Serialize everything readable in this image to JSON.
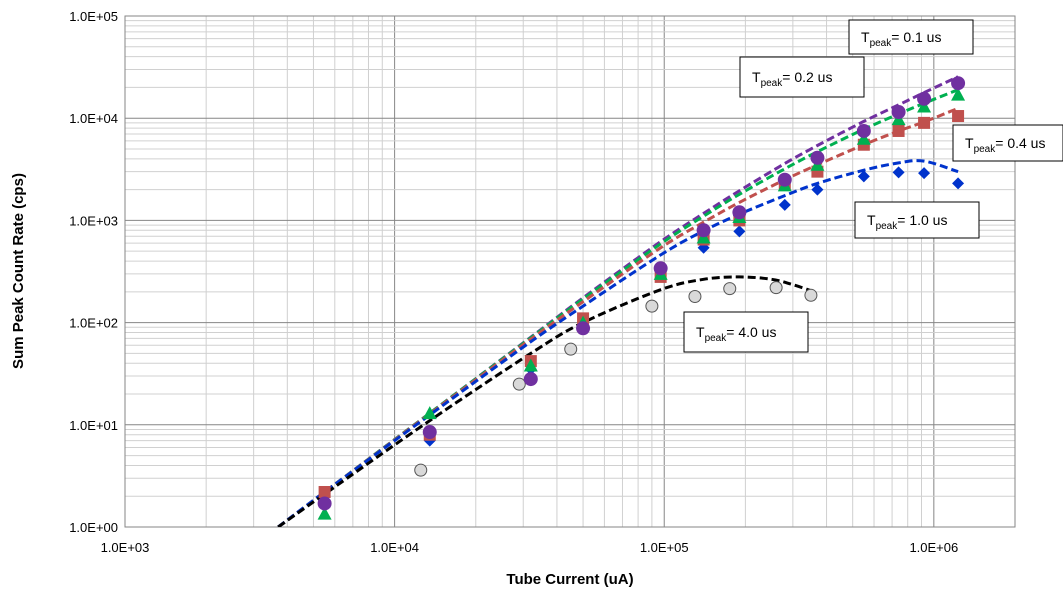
{
  "chart_data": {
    "type": "scatter",
    "xlabel": "Tube Current (uA)",
    "ylabel": "Sum Peak Count Rate (cps)",
    "xscale": "log",
    "yscale": "log",
    "xlim": [
      1000,
      2000000
    ],
    "ylim": [
      1,
      100000
    ],
    "xticks": [
      "1.0E+03",
      "1.0E+04",
      "1.0E+05",
      "1.0E+06"
    ],
    "yticks": [
      "1.0E+00",
      "1.0E+01",
      "1.0E+02",
      "1.0E+03",
      "1.0E+04",
      "1.0E+05"
    ],
    "grid": true,
    "series": [
      {
        "tpeak_us": 0.1,
        "label": {
          "t": "T",
          "sub": "peak",
          "rest": "= 0.1 us"
        },
        "color": "#7030a0",
        "marker": "circle",
        "points": [
          [
            5500,
            1.7
          ],
          [
            13500,
            8.5
          ],
          [
            32000,
            28
          ],
          [
            50000,
            88
          ],
          [
            97000,
            340
          ],
          [
            140000,
            800
          ],
          [
            190000,
            1200
          ],
          [
            280000,
            2500
          ],
          [
            370000,
            4100
          ],
          [
            550000,
            7500
          ],
          [
            740000,
            11500
          ],
          [
            920000,
            15500
          ],
          [
            1230000,
            22000
          ]
        ],
        "fit": [
          [
            3700,
            1
          ],
          [
            5500,
            2.2
          ],
          [
            13500,
            13
          ],
          [
            32000,
            72
          ],
          [
            50000,
            175
          ],
          [
            97000,
            620
          ],
          [
            140000,
            1170
          ],
          [
            190000,
            1950
          ],
          [
            280000,
            3600
          ],
          [
            370000,
            5400
          ],
          [
            550000,
            9300
          ],
          [
            740000,
            13500
          ],
          [
            920000,
            17800
          ],
          [
            1230000,
            25500
          ]
        ]
      },
      {
        "tpeak_us": 0.2,
        "label": {
          "t": "T",
          "sub": "peak",
          "rest": "= 0.2 us"
        },
        "color": "#00b050",
        "marker": "triangle",
        "points": [
          [
            5500,
            1.35
          ],
          [
            13500,
            13
          ],
          [
            32000,
            38
          ],
          [
            50000,
            100
          ],
          [
            97000,
            300
          ],
          [
            140000,
            680
          ],
          [
            190000,
            1080
          ],
          [
            280000,
            2200
          ],
          [
            370000,
            3500
          ],
          [
            550000,
            6300
          ],
          [
            740000,
            9800
          ],
          [
            920000,
            13000
          ],
          [
            1230000,
            17000
          ]
        ],
        "fit": [
          [
            3700,
            1
          ],
          [
            5500,
            2.2
          ],
          [
            13500,
            13
          ],
          [
            32000,
            71
          ],
          [
            50000,
            170
          ],
          [
            97000,
            590
          ],
          [
            140000,
            1100
          ],
          [
            190000,
            1800
          ],
          [
            280000,
            3200
          ],
          [
            370000,
            4700
          ],
          [
            550000,
            7800
          ],
          [
            740000,
            11000
          ],
          [
            920000,
            14000
          ],
          [
            1230000,
            19000
          ]
        ]
      },
      {
        "tpeak_us": 0.4,
        "label": {
          "t": "T",
          "sub": "peak",
          "rest": "= 0.4 us"
        },
        "color": "#c0504d",
        "marker": "square",
        "points": [
          [
            5500,
            2.2
          ],
          [
            13500,
            8
          ],
          [
            32000,
            42
          ],
          [
            50000,
            110
          ],
          [
            97000,
            280
          ],
          [
            140000,
            650
          ],
          [
            190000,
            1000
          ],
          [
            280000,
            2300
          ],
          [
            370000,
            3000
          ],
          [
            550000,
            5500
          ],
          [
            740000,
            7500
          ],
          [
            920000,
            9000
          ],
          [
            1230000,
            10500
          ]
        ],
        "fit": [
          [
            3700,
            1
          ],
          [
            5500,
            2.2
          ],
          [
            13500,
            12.8
          ],
          [
            32000,
            69
          ],
          [
            50000,
            160
          ],
          [
            97000,
            540
          ],
          [
            140000,
            960
          ],
          [
            190000,
            1500
          ],
          [
            280000,
            2500
          ],
          [
            370000,
            3500
          ],
          [
            550000,
            5500
          ],
          [
            740000,
            7500
          ],
          [
            920000,
            9200
          ],
          [
            1230000,
            12500
          ]
        ]
      },
      {
        "tpeak_us": 1.0,
        "label": {
          "t": "T",
          "sub": "peak",
          "rest": "= 1.0 us"
        },
        "color": "#0033cc",
        "marker": "diamond",
        "points": [
          [
            5500,
            2
          ],
          [
            13500,
            7
          ],
          [
            32000,
            35
          ],
          [
            50000,
            95
          ],
          [
            97000,
            290
          ],
          [
            140000,
            540
          ],
          [
            190000,
            780
          ],
          [
            280000,
            1420
          ],
          [
            370000,
            2000
          ],
          [
            550000,
            2700
          ],
          [
            740000,
            2950
          ],
          [
            920000,
            2900
          ],
          [
            1230000,
            2300
          ]
        ],
        "fit": [
          [
            3700,
            1
          ],
          [
            5500,
            2.2
          ],
          [
            13500,
            12.5
          ],
          [
            32000,
            65
          ],
          [
            50000,
            145
          ],
          [
            97000,
            460
          ],
          [
            140000,
            790
          ],
          [
            190000,
            1150
          ],
          [
            280000,
            1750
          ],
          [
            370000,
            2300
          ],
          [
            550000,
            3100
          ],
          [
            740000,
            3650
          ],
          [
            920000,
            3800
          ],
          [
            1230000,
            3000
          ]
        ]
      },
      {
        "tpeak_us": 4.0,
        "label": {
          "t": "T",
          "sub": "peak",
          "rest": "= 4.0 us"
        },
        "color": "#000000",
        "marker": "open-circle",
        "points": [
          [
            12500,
            3.6
          ],
          [
            29000,
            25
          ],
          [
            45000,
            55
          ],
          [
            90000,
            145
          ],
          [
            130000,
            180
          ],
          [
            175000,
            215
          ],
          [
            260000,
            220
          ],
          [
            350000,
            185
          ]
        ],
        "fit": [
          [
            3700,
            1
          ],
          [
            5500,
            2.1
          ],
          [
            13500,
            11
          ],
          [
            32000,
            50
          ],
          [
            50000,
            100
          ],
          [
            97000,
            210
          ],
          [
            140000,
            265
          ],
          [
            190000,
            280
          ],
          [
            250000,
            265
          ],
          [
            300000,
            235
          ],
          [
            350000,
            205
          ]
        ]
      }
    ]
  }
}
